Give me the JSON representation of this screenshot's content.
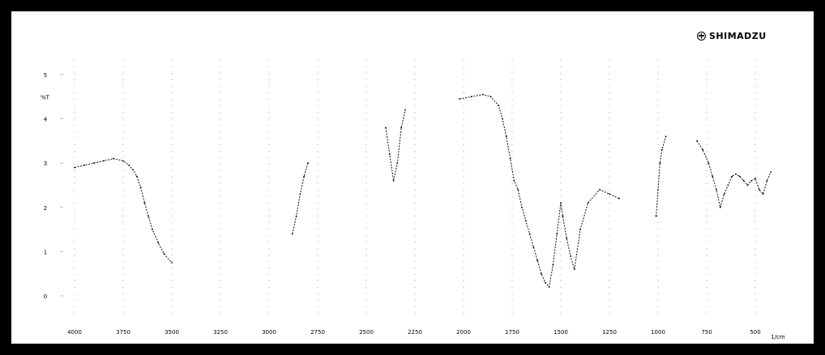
{
  "brand": {
    "name": "SHIMADZU",
    "icon": "shimadzu-logo-icon"
  },
  "chart_data": {
    "type": "line",
    "title": "",
    "ylabel": "%T",
    "xunit": "1/cm",
    "xlim": [
      4000,
      400
    ],
    "ylim": [
      -0.5,
      5.5
    ],
    "x_ticks": [
      4000,
      3750,
      3500,
      3250,
      3000,
      2750,
      2500,
      2250,
      2000,
      1750,
      1500,
      1250,
      1000,
      750,
      500
    ],
    "x_tick_labels": [
      "4000",
      "3750",
      "3500",
      "3250",
      "3000",
      "2750",
      "2500",
      "2250",
      "2000",
      "1750",
      "1500",
      "1250",
      "1000",
      "750",
      "500"
    ],
    "y_ticks": [
      0,
      1,
      2,
      3,
      4,
      5
    ],
    "y_tick_labels": [
      "0",
      "1",
      "2",
      "3",
      "4",
      "5"
    ],
    "grid": true,
    "series": [
      {
        "x": [
          4000,
          3950,
          3900,
          3850,
          3800,
          3750,
          3720,
          3700,
          3680,
          3660,
          3640,
          3620,
          3600,
          3570,
          3540,
          3500
        ],
        "y": [
          2.9,
          2.95,
          3.0,
          3.05,
          3.1,
          3.05,
          2.95,
          2.85,
          2.7,
          2.45,
          2.1,
          1.8,
          1.5,
          1.2,
          0.95,
          0.75
        ]
      },
      {
        "x": [
          2880,
          2860,
          2840,
          2820,
          2800
        ],
        "y": [
          1.4,
          1.8,
          2.3,
          2.7,
          3.0
        ]
      },
      {
        "x": [
          2400,
          2380,
          2360,
          2340,
          2320,
          2300
        ],
        "y": [
          3.8,
          3.2,
          2.6,
          3.0,
          3.8,
          4.2
        ]
      },
      {
        "x": [
          2020,
          1960,
          1900,
          1860,
          1820,
          1800,
          1780,
          1760,
          1740,
          1720,
          1700,
          1680,
          1660,
          1640,
          1620,
          1600,
          1580,
          1560,
          1540,
          1520,
          1500,
          1490,
          1470,
          1450,
          1430,
          1400,
          1360,
          1300,
          1250,
          1200
        ],
        "y": [
          4.45,
          4.5,
          4.55,
          4.5,
          4.3,
          4.0,
          3.6,
          3.1,
          2.6,
          2.4,
          2.0,
          1.7,
          1.4,
          1.1,
          0.8,
          0.5,
          0.3,
          0.2,
          0.7,
          1.4,
          2.1,
          1.8,
          1.3,
          0.9,
          0.6,
          1.5,
          2.1,
          2.4,
          2.3,
          2.2
        ]
      },
      {
        "x": [
          1010,
          1000,
          990,
          980,
          960
        ],
        "y": [
          1.8,
          2.4,
          3.0,
          3.3,
          3.6
        ]
      },
      {
        "x": [
          800,
          770,
          740,
          720,
          700,
          680,
          660,
          640,
          620,
          600,
          580,
          560,
          540,
          520,
          500,
          480,
          460,
          440,
          420
        ],
        "y": [
          3.5,
          3.3,
          3.0,
          2.7,
          2.4,
          2.0,
          2.3,
          2.5,
          2.7,
          2.75,
          2.7,
          2.6,
          2.5,
          2.6,
          2.65,
          2.4,
          2.3,
          2.6,
          2.8
        ]
      }
    ]
  }
}
